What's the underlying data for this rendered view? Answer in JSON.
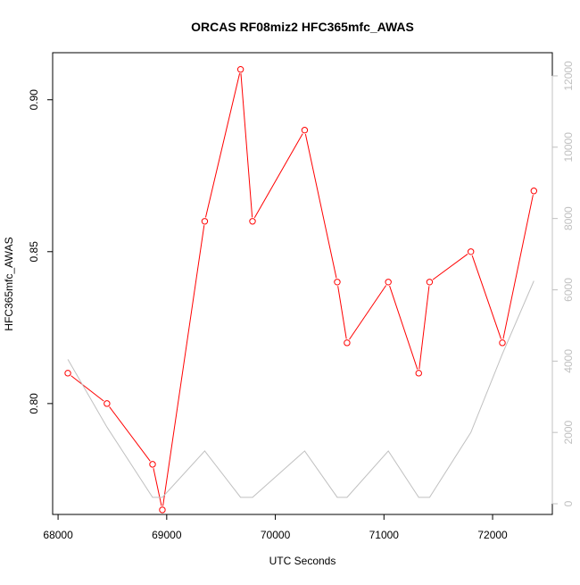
{
  "chart_data": {
    "type": "line",
    "title": "ORCAS RF08miz2 HFC365mfc_AWAS",
    "xlabel": "UTC Seconds",
    "ylabel": "HFC365mfc_AWAS",
    "xlim": [
      67950,
      72550
    ],
    "ylim": [
      0.7635,
      0.9155
    ],
    "y2lim": [
      -300,
      12650
    ],
    "x_ticks": [
      68000,
      69000,
      70000,
      71000,
      72000
    ],
    "y_ticks": [
      0.8,
      0.85,
      0.9
    ],
    "y_tick_labels": [
      "0.80",
      "0.85",
      "0.90"
    ],
    "y2_ticks": [
      0,
      2000,
      4000,
      6000,
      8000,
      10000,
      12000
    ],
    "grid": false,
    "series": [
      {
        "axis": "left",
        "color": "#ff0000",
        "markers": "open-circle",
        "x": [
          68090,
          68450,
          68870,
          68960,
          69350,
          69680,
          69790,
          70270,
          70570,
          70660,
          71040,
          71320,
          71420,
          71800,
          72090,
          72380
        ],
        "values": [
          0.81,
          0.8,
          0.78,
          0.765,
          0.86,
          0.91,
          0.86,
          0.89,
          0.84,
          0.82,
          0.84,
          0.81,
          0.84,
          0.85,
          0.82,
          0.87
        ]
      },
      {
        "axis": "right",
        "color": "#c0c0c0",
        "markers": "none",
        "x": [
          68090,
          68450,
          68870,
          68960,
          69350,
          69680,
          69790,
          70270,
          70570,
          70660,
          71040,
          71320,
          71420,
          71800,
          72090,
          72380
        ],
        "values": [
          4050,
          2150,
          180,
          180,
          1480,
          180,
          180,
          1480,
          180,
          180,
          1480,
          180,
          180,
          2000,
          4200,
          6250
        ]
      }
    ]
  }
}
